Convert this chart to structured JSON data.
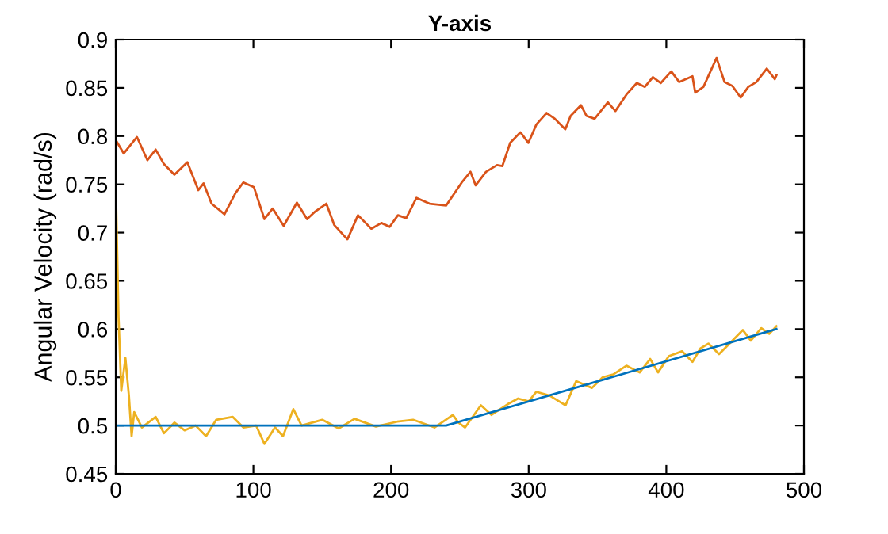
{
  "chart_data": {
    "type": "line",
    "title": "Y-axis",
    "ylabel": "Angular Velocity (rad/s)",
    "xlim": [
      0,
      500
    ],
    "xticks": [
      0,
      100,
      200,
      300,
      400,
      500
    ],
    "ylim": [
      0.45,
      0.9
    ],
    "yticks": [
      0.45,
      0.5,
      0.55,
      0.6,
      0.65,
      0.7,
      0.75,
      0.8,
      0.85,
      0.9
    ],
    "grid": false,
    "marker": "none",
    "line_style": "solid",
    "series": [
      {
        "color": "#d95319",
        "x": [
          0,
          5.8,
          15.4,
          23,
          29,
          35,
          42.6,
          52,
          60,
          63.8,
          69.6,
          79,
          87,
          92.7,
          100.4,
          108,
          114,
          122,
          131.6,
          139,
          145,
          153,
          158.7,
          168.3,
          176,
          185.7,
          193,
          199,
          205,
          211,
          218.5,
          228,
          240,
          251.4,
          257.7,
          261.5,
          269,
          277,
          280.9,
          286.6,
          294,
          299.8,
          305.6,
          313,
          319,
          326.6,
          330.5,
          338,
          342,
          347.9,
          357.5,
          363,
          371,
          378.6,
          384.4,
          390.2,
          396,
          403.6,
          409.4,
          419,
          421,
          427,
          436.5,
          442.3,
          448,
          454,
          459.6,
          465.4,
          473,
          478.8,
          480
        ],
        "values": [
          0.796,
          0.782,
          0.799,
          0.775,
          0.786,
          0.771,
          0.76,
          0.773,
          0.744,
          0.751,
          0.73,
          0.719,
          0.741,
          0.752,
          0.747,
          0.714,
          0.725,
          0.707,
          0.731,
          0.714,
          0.722,
          0.73,
          0.708,
          0.693,
          0.718,
          0.704,
          0.71,
          0.706,
          0.718,
          0.715,
          0.736,
          0.73,
          0.728,
          0.752,
          0.763,
          0.749,
          0.763,
          0.77,
          0.769,
          0.793,
          0.804,
          0.793,
          0.812,
          0.824,
          0.818,
          0.807,
          0.821,
          0.832,
          0.821,
          0.818,
          0.835,
          0.826,
          0.843,
          0.855,
          0.851,
          0.861,
          0.855,
          0.867,
          0.856,
          0.862,
          0.845,
          0.851,
          0.881,
          0.856,
          0.852,
          0.84,
          0.851,
          0.856,
          0.87,
          0.859,
          0.863
        ]
      },
      {
        "color": "#edb120",
        "x": [
          0,
          2,
          4,
          7,
          9.6,
          11.5,
          13.4,
          19,
          29,
          35,
          42.6,
          50,
          58,
          65.6,
          73,
          85,
          92.7,
          102,
          108,
          115.7,
          121.5,
          129,
          135,
          150,
          162,
          173.5,
          189,
          204.5,
          216,
          231.6,
          245,
          249,
          253.8,
          265.3,
          273,
          284.6,
          292.3,
          300,
          305.6,
          315.3,
          326.8,
          334.5,
          346,
          353.7,
          361.4,
          371,
          380.6,
          388.3,
          394,
          401.8,
          411.4,
          419,
          424.8,
          430.6,
          438.3,
          446,
          455.6,
          461.4,
          469,
          474.8,
          480
        ],
        "values": [
          0.75,
          0.613,
          0.536,
          0.57,
          0.53,
          0.489,
          0.514,
          0.498,
          0.509,
          0.492,
          0.503,
          0.495,
          0.5,
          0.489,
          0.506,
          0.509,
          0.498,
          0.5,
          0.481,
          0.498,
          0.489,
          0.517,
          0.5,
          0.506,
          0.497,
          0.507,
          0.499,
          0.504,
          0.506,
          0.498,
          0.511,
          0.503,
          0.498,
          0.521,
          0.511,
          0.522,
          0.528,
          0.525,
          0.535,
          0.531,
          0.521,
          0.546,
          0.539,
          0.55,
          0.553,
          0.562,
          0.555,
          0.569,
          0.555,
          0.572,
          0.577,
          0.566,
          0.58,
          0.585,
          0.574,
          0.585,
          0.599,
          0.588,
          0.601,
          0.595,
          0.603
        ]
      },
      {
        "color": "#0072bd",
        "x": [
          0,
          240,
          480
        ],
        "values": [
          0.5,
          0.5,
          0.6
        ]
      }
    ]
  }
}
